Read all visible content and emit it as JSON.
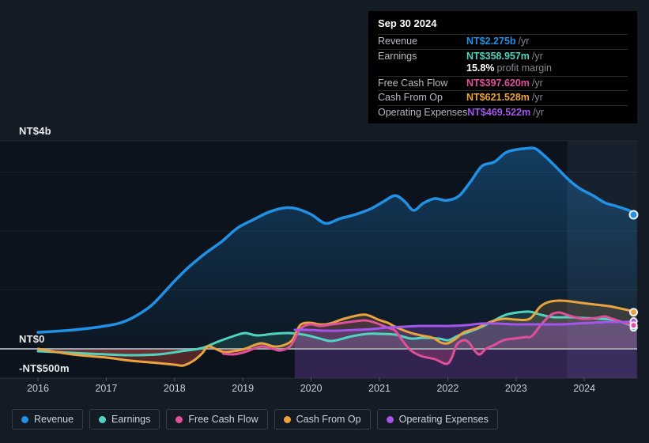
{
  "tooltip": {
    "date": "Sep 30 2024",
    "rows": [
      {
        "label": "Revenue",
        "value": "NT$2.275b",
        "suffix": "/yr",
        "series": "revenue"
      },
      {
        "label": "Earnings",
        "value": "NT$358.957m",
        "suffix": "/yr",
        "series": "earnings",
        "sub_value": "15.8%",
        "sub_suffix": "profit margin"
      },
      {
        "label": "Free Cash Flow",
        "value": "NT$397.620m",
        "suffix": "/yr",
        "series": "fcf"
      },
      {
        "label": "Cash From Op",
        "value": "NT$621.528m",
        "suffix": "/yr",
        "series": "cfo"
      },
      {
        "label": "Operating Expenses",
        "value": "NT$469.522m",
        "suffix": "/yr",
        "series": "opex"
      }
    ]
  },
  "legend": {
    "items": [
      {
        "label": "Revenue",
        "series": "revenue"
      },
      {
        "label": "Earnings",
        "series": "earnings"
      },
      {
        "label": "Free Cash Flow",
        "series": "fcf"
      },
      {
        "label": "Cash From Op",
        "series": "cfo"
      },
      {
        "label": "Operating Expenses",
        "series": "opex"
      }
    ]
  },
  "colors": {
    "revenue": "#2191e6",
    "earnings": "#4fd4c0",
    "fcf": "#e0509a",
    "cfo": "#eaa33e",
    "opex": "#a455ec",
    "negative_fill": "rgba(142,40,56,0.38)",
    "zero_line": "#9aa1a9",
    "plot_bg": "#0c131c",
    "band_fill": "rgba(126,156,201,0.10)"
  },
  "chart_data": {
    "type": "area",
    "title": "Earnings and Revenue History",
    "y_unit": "NT$ billions",
    "y_labels": [
      "NT$4b",
      "NT$0",
      "-NT$500m"
    ],
    "y_range_billions": [
      -0.5,
      3.53
    ],
    "grid_values_billions": [
      1,
      2,
      3
    ],
    "x_range": [
      2016,
      2024.77
    ],
    "highlight_band_years": [
      2023.75,
      2024.77
    ],
    "grid": true,
    "legend_position": "bottom",
    "x_ticks": [
      {
        "year": 2016,
        "label": "2016"
      },
      {
        "year": 2017,
        "label": "2017"
      },
      {
        "year": 2018,
        "label": "2018"
      },
      {
        "year": 2019,
        "label": "2019"
      },
      {
        "year": 2020,
        "label": "2020"
      },
      {
        "year": 2021,
        "label": "2021"
      },
      {
        "year": 2022,
        "label": "2022"
      },
      {
        "year": 2023,
        "label": "2023"
      },
      {
        "year": 2024,
        "label": "2024"
      }
    ],
    "series": [
      {
        "name": "Revenue",
        "key": "revenue",
        "current": "NT$2.275b/yr",
        "points": [
          [
            2016,
            0.28
          ],
          [
            2016.5,
            0.32
          ],
          [
            2017,
            0.39
          ],
          [
            2017.3,
            0.48
          ],
          [
            2017.6,
            0.68
          ],
          [
            2017.76,
            0.85
          ],
          [
            2018,
            1.15
          ],
          [
            2018.22,
            1.4
          ],
          [
            2018.45,
            1.62
          ],
          [
            2018.7,
            1.83
          ],
          [
            2018.92,
            2.05
          ],
          [
            2019.15,
            2.19
          ],
          [
            2019.38,
            2.32
          ],
          [
            2019.6,
            2.39
          ],
          [
            2019.78,
            2.38
          ],
          [
            2020,
            2.28
          ],
          [
            2020.21,
            2.13
          ],
          [
            2020.42,
            2.21
          ],
          [
            2020.65,
            2.28
          ],
          [
            2020.88,
            2.38
          ],
          [
            2021.06,
            2.5
          ],
          [
            2021.23,
            2.6
          ],
          [
            2021.37,
            2.5
          ],
          [
            2021.5,
            2.35
          ],
          [
            2021.64,
            2.47
          ],
          [
            2021.81,
            2.55
          ],
          [
            2021.98,
            2.52
          ],
          [
            2022.16,
            2.59
          ],
          [
            2022.33,
            2.83
          ],
          [
            2022.5,
            3.1
          ],
          [
            2022.68,
            3.17
          ],
          [
            2022.85,
            3.33
          ],
          [
            2023,
            3.38
          ],
          [
            2023.14,
            3.4
          ],
          [
            2023.28,
            3.4
          ],
          [
            2023.43,
            3.26
          ],
          [
            2023.6,
            3.07
          ],
          [
            2023.78,
            2.86
          ],
          [
            2023.95,
            2.71
          ],
          [
            2024.13,
            2.6
          ],
          [
            2024.3,
            2.48
          ],
          [
            2024.47,
            2.42
          ],
          [
            2024.65,
            2.35
          ],
          [
            2024.77,
            2.275
          ]
        ]
      },
      {
        "name": "Earnings",
        "key": "earnings",
        "current": "NT$358.957m/yr",
        "points": [
          [
            2016,
            -0.04
          ],
          [
            2016.5,
            -0.067
          ],
          [
            2017,
            -0.094
          ],
          [
            2017.35,
            -0.107
          ],
          [
            2017.76,
            -0.094
          ],
          [
            2018.1,
            -0.04
          ],
          [
            2018.4,
            0.013
          ],
          [
            2018.63,
            0.12
          ],
          [
            2018.86,
            0.215
          ],
          [
            2019.03,
            0.268
          ],
          [
            2019.21,
            0.228
          ],
          [
            2019.44,
            0.255
          ],
          [
            2019.67,
            0.268
          ],
          [
            2019.9,
            0.24
          ],
          [
            2020.13,
            0.175
          ],
          [
            2020.31,
            0.134
          ],
          [
            2020.6,
            0.215
          ],
          [
            2020.83,
            0.255
          ],
          [
            2021,
            0.255
          ],
          [
            2021.23,
            0.242
          ],
          [
            2021.46,
            0.175
          ],
          [
            2021.64,
            0.188
          ],
          [
            2021.87,
            0.175
          ],
          [
            2022.01,
            0.148
          ],
          [
            2022.16,
            0.228
          ],
          [
            2022.33,
            0.295
          ],
          [
            2022.5,
            0.376
          ],
          [
            2022.68,
            0.483
          ],
          [
            2022.85,
            0.577
          ],
          [
            2023.02,
            0.617
          ],
          [
            2023.2,
            0.631
          ],
          [
            2023.37,
            0.577
          ],
          [
            2023.55,
            0.537
          ],
          [
            2023.78,
            0.537
          ],
          [
            2024.01,
            0.523
          ],
          [
            2024.24,
            0.51
          ],
          [
            2024.47,
            0.483
          ],
          [
            2024.77,
            0.359
          ]
        ]
      },
      {
        "name": "Cash From Op",
        "key": "cfo",
        "current": "NT$621.528m/yr",
        "points": [
          [
            2016,
            0
          ],
          [
            2016.5,
            -0.094
          ],
          [
            2017,
            -0.148
          ],
          [
            2017.35,
            -0.2
          ],
          [
            2017.76,
            -0.242
          ],
          [
            2018,
            -0.268
          ],
          [
            2018.13,
            -0.282
          ],
          [
            2018.28,
            -0.2
          ],
          [
            2018.4,
            -0.08
          ],
          [
            2018.49,
            0.04
          ],
          [
            2018.6,
            0
          ],
          [
            2018.72,
            -0.054
          ],
          [
            2018.86,
            -0.04
          ],
          [
            2019.03,
            0
          ],
          [
            2019.26,
            0.094
          ],
          [
            2019.46,
            0.04
          ],
          [
            2019.61,
            0.067
          ],
          [
            2019.73,
            0.161
          ],
          [
            2019.84,
            0.403
          ],
          [
            2019.98,
            0.443
          ],
          [
            2020.11,
            0.416
          ],
          [
            2020.21,
            0.416
          ],
          [
            2020.31,
            0.443
          ],
          [
            2020.48,
            0.51
          ],
          [
            2020.73,
            0.577
          ],
          [
            2020.85,
            0.564
          ],
          [
            2020.98,
            0.497
          ],
          [
            2021.12,
            0.443
          ],
          [
            2021.23,
            0.376
          ],
          [
            2021.43,
            0.282
          ],
          [
            2021.61,
            0.228
          ],
          [
            2021.78,
            0.188
          ],
          [
            2021.9,
            0.108
          ],
          [
            2022,
            0.094
          ],
          [
            2022.12,
            0.175
          ],
          [
            2022.24,
            0.282
          ],
          [
            2022.42,
            0.349
          ],
          [
            2022.62,
            0.456
          ],
          [
            2022.82,
            0.51
          ],
          [
            2023,
            0.497
          ],
          [
            2023.2,
            0.51
          ],
          [
            2023.35,
            0.711
          ],
          [
            2023.47,
            0.792
          ],
          [
            2023.63,
            0.819
          ],
          [
            2023.8,
            0.805
          ],
          [
            2023.97,
            0.779
          ],
          [
            2024.16,
            0.752
          ],
          [
            2024.36,
            0.725
          ],
          [
            2024.53,
            0.685
          ],
          [
            2024.77,
            0.622
          ]
        ]
      },
      {
        "name": "Free Cash Flow",
        "key": "fcf",
        "current": "NT$397.620m/yr",
        "points": [
          [
            2018.71,
            -0.08
          ],
          [
            2018.86,
            -0.094
          ],
          [
            2019.03,
            -0.054
          ],
          [
            2019.26,
            0.04
          ],
          [
            2019.44,
            0
          ],
          [
            2019.55,
            -0.027
          ],
          [
            2019.7,
            0.054
          ],
          [
            2019.84,
            0.336
          ],
          [
            2019.98,
            0.416
          ],
          [
            2020.13,
            0.389
          ],
          [
            2020.31,
            0.416
          ],
          [
            2020.48,
            0.443
          ],
          [
            2020.65,
            0.47
          ],
          [
            2020.8,
            0.483
          ],
          [
            2020.94,
            0.443
          ],
          [
            2021.12,
            0.36
          ],
          [
            2021.23,
            0.309
          ],
          [
            2021.35,
            0.121
          ],
          [
            2021.46,
            -0.027
          ],
          [
            2021.61,
            -0.121
          ],
          [
            2021.81,
            -0.175
          ],
          [
            2021.98,
            -0.255
          ],
          [
            2022.06,
            -0.148
          ],
          [
            2022.13,
            0.067
          ],
          [
            2022.23,
            0.148
          ],
          [
            2022.31,
            0.107
          ],
          [
            2022.4,
            -0.04
          ],
          [
            2022.47,
            -0.094
          ],
          [
            2022.56,
            0
          ],
          [
            2022.68,
            0.067
          ],
          [
            2022.82,
            0.148
          ],
          [
            2022.97,
            0.175
          ],
          [
            2023.14,
            0.2
          ],
          [
            2023.23,
            0.215
          ],
          [
            2023.37,
            0.416
          ],
          [
            2023.51,
            0.577
          ],
          [
            2023.63,
            0.617
          ],
          [
            2023.78,
            0.564
          ],
          [
            2023.97,
            0.51
          ],
          [
            2024.16,
            0.523
          ],
          [
            2024.3,
            0.55
          ],
          [
            2024.41,
            0.51
          ],
          [
            2024.59,
            0.443
          ],
          [
            2024.77,
            0.398
          ]
        ]
      },
      {
        "name": "Operating Expenses",
        "key": "opex",
        "current": "NT$469.522m/yr",
        "points": [
          [
            2019.76,
            0.322
          ],
          [
            2019.96,
            0.322
          ],
          [
            2020.19,
            0.309
          ],
          [
            2020.42,
            0.309
          ],
          [
            2020.65,
            0.322
          ],
          [
            2020.88,
            0.336
          ],
          [
            2021.12,
            0.362
          ],
          [
            2021.35,
            0.376
          ],
          [
            2021.58,
            0.389
          ],
          [
            2021.81,
            0.389
          ],
          [
            2022.04,
            0.389
          ],
          [
            2022.27,
            0.403
          ],
          [
            2022.5,
            0.43
          ],
          [
            2022.73,
            0.43
          ],
          [
            2022.97,
            0.416
          ],
          [
            2023.2,
            0.416
          ],
          [
            2023.43,
            0.416
          ],
          [
            2023.66,
            0.416
          ],
          [
            2023.89,
            0.43
          ],
          [
            2024.13,
            0.443
          ],
          [
            2024.36,
            0.456
          ],
          [
            2024.59,
            0.456
          ],
          [
            2024.77,
            0.47
          ]
        ]
      }
    ]
  }
}
